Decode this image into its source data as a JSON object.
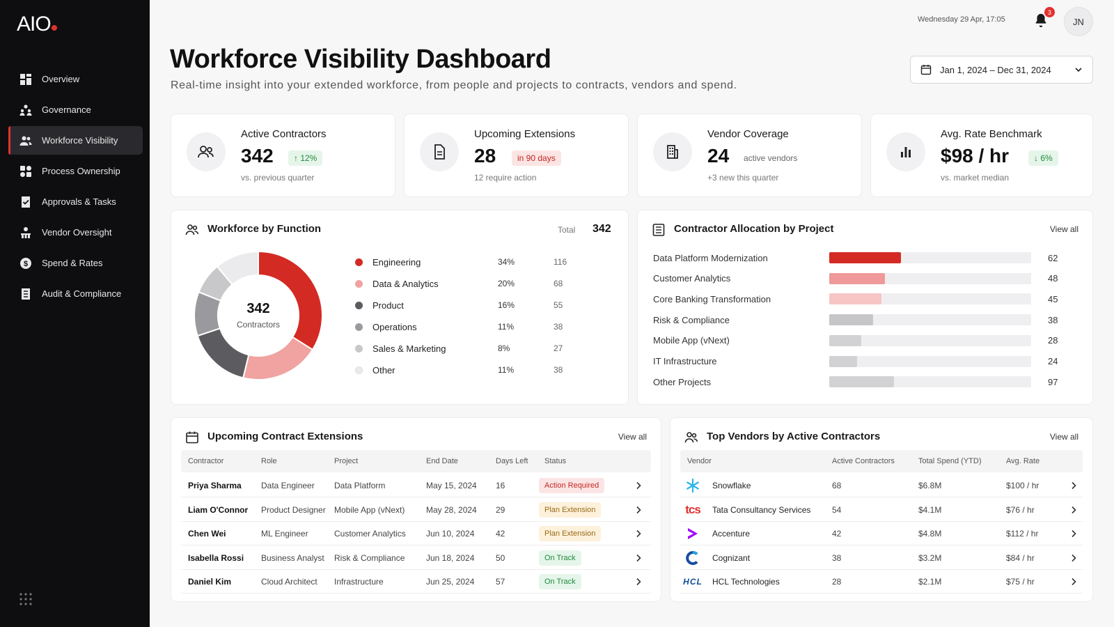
{
  "app": {
    "logo": "AIO"
  },
  "sidebar": {
    "items": [
      {
        "label": "Overview",
        "icon": "grid-icon"
      },
      {
        "label": "Governance",
        "icon": "people-hierarchy-icon"
      },
      {
        "label": "Workforce Visibility",
        "icon": "users-icon",
        "active": true
      },
      {
        "label": "Process Ownership",
        "icon": "process-icon"
      },
      {
        "label": "Approvals & Tasks",
        "icon": "checklist-icon"
      },
      {
        "label": "Vendor Oversight",
        "icon": "vendor-icon"
      },
      {
        "label": "Spend & Rates",
        "icon": "dollar-icon"
      },
      {
        "label": "Audit & Compliance",
        "icon": "document-icon"
      }
    ]
  },
  "topbar": {
    "datetime": "Wednesday 29 Apr, 17:05",
    "notifications": "3",
    "avatar_initials": "JN"
  },
  "header": {
    "title": "Workforce Visibility Dashboard",
    "subtitle": "Real-time insight into your extended workforce, from people and projects to contracts, vendors and spend.",
    "date_range": "Jan 1, 2024 – Dec 31, 2024"
  },
  "kpis": [
    {
      "title": "Active Contractors",
      "value": "342",
      "badge": "↑ 12%",
      "sub": "vs. previous quarter"
    },
    {
      "title": "Upcoming Extensions",
      "value": "28",
      "badge": "in 90 days",
      "sub": "12 require action"
    },
    {
      "title": "Vendor Coverage",
      "value": "24",
      "note": "active vendors",
      "sub": "+3 new this quarter"
    },
    {
      "title": "Avg. Rate Benchmark",
      "value": "$98 / hr",
      "badge": "↓ 6%",
      "sub": "vs. market median"
    }
  ],
  "workforce": {
    "title": "Workforce by Function",
    "total_label": "Total",
    "total_value": "342",
    "center_value": "342",
    "center_label": "Contractors"
  },
  "chart_data": {
    "type": "pie",
    "categories": [
      "Engineering",
      "Data & Analytics",
      "Product",
      "Operations",
      "Sales & Marketing",
      "Other"
    ],
    "percent_labels": [
      "34%",
      "20%",
      "16%",
      "11%",
      "8%",
      "11%"
    ],
    "values": [
      116,
      68,
      55,
      38,
      27,
      38
    ],
    "colors": [
      "#d42a24",
      "#f0a3a1",
      "#5c5c60",
      "#9a9a9e",
      "#c8c8cb",
      "#ebebed"
    ]
  },
  "allocation": {
    "title": "Contractor Allocation by Project",
    "view_all": "View all",
    "max": 175,
    "rows": [
      {
        "label": "Data Platform Modernization",
        "value": 62,
        "color": "#d42a24"
      },
      {
        "label": "Customer Analytics",
        "value": 48,
        "color": "#f0999a"
      },
      {
        "label": "Core Banking Transformation",
        "value": 45,
        "color": "#f6c6c5"
      },
      {
        "label": "Risk & Compliance",
        "value": 38,
        "color": "#c6c6c9"
      },
      {
        "label": "Mobile App (vNext)",
        "value": 28,
        "color": "#d2d2d5"
      },
      {
        "label": "IT Infrastructure",
        "value": 24,
        "color": "#d2d2d5"
      },
      {
        "label": "Other Projects",
        "value": 97,
        "color": "#d2d2d5",
        "fill_value": 56
      }
    ]
  },
  "extensions": {
    "title": "Upcoming Contract Extensions",
    "view_all": "View all",
    "columns": [
      "Contractor",
      "Role",
      "Project",
      "End Date",
      "Days Left",
      "Status"
    ],
    "rows": [
      {
        "name": "Priya Sharma",
        "role": "Data Engineer",
        "project": "Data Platform",
        "end": "May 15, 2024",
        "days": "16",
        "status": "Action Required",
        "kind": "action"
      },
      {
        "name": "Liam O'Connor",
        "role": "Product Designer",
        "project": "Mobile App (vNext)",
        "end": "May 28, 2024",
        "days": "29",
        "status": "Plan Extension",
        "kind": "plan"
      },
      {
        "name": "Chen Wei",
        "role": "ML Engineer",
        "project": "Customer Analytics",
        "end": "Jun 10, 2024",
        "days": "42",
        "status": "Plan Extension",
        "kind": "plan"
      },
      {
        "name": "Isabella Rossi",
        "role": "Business Analyst",
        "project": "Risk & Compliance",
        "end": "Jun 18, 2024",
        "days": "50",
        "status": "On Track",
        "kind": "track"
      },
      {
        "name": "Daniel Kim",
        "role": "Cloud Architect",
        "project": "Infrastructure",
        "end": "Jun 25, 2024",
        "days": "57",
        "status": "On Track",
        "kind": "track"
      }
    ]
  },
  "vendors": {
    "title": "Top Vendors by Active Contractors",
    "view_all": "View all",
    "columns": [
      "Vendor",
      "Active Contractors",
      "Total Spend (YTD)",
      "Avg. Rate"
    ],
    "rows": [
      {
        "name": "Snowflake",
        "count": "68",
        "spend": "$6.8M",
        "rate": "$100 / hr",
        "logo": "snowflake-logo"
      },
      {
        "name": "Tata Consultancy Services",
        "count": "54",
        "spend": "$4.1M",
        "rate": "$76 / hr",
        "logo": "tcs-logo",
        "logo_text": "tcs"
      },
      {
        "name": "Accenture",
        "count": "42",
        "spend": "$4.8M",
        "rate": "$112 / hr",
        "logo": "accenture-logo"
      },
      {
        "name": "Cognizant",
        "count": "38",
        "spend": "$3.2M",
        "rate": "$84 / hr",
        "logo": "cognizant-logo"
      },
      {
        "name": "HCL Technologies",
        "count": "28",
        "spend": "$2.1M",
        "rate": "$75 / hr",
        "logo": "hcl-logo",
        "logo_text": "HCL"
      }
    ]
  }
}
